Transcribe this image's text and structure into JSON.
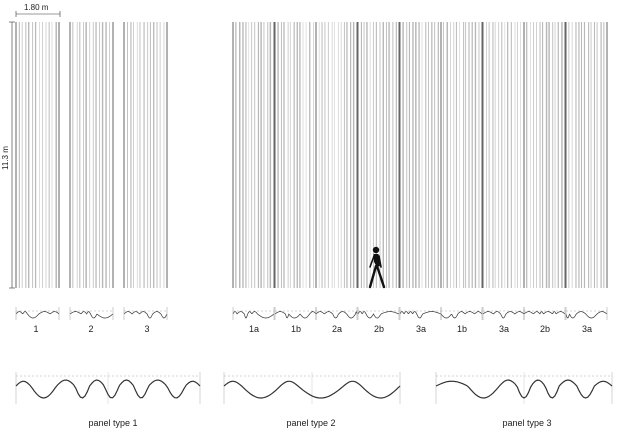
{
  "dimensions": {
    "width_label": "1.80 m",
    "height_label": "11.3 m"
  },
  "left_panels": [
    "1",
    "2",
    "3"
  ],
  "right_panels": [
    "1a",
    "1b",
    "2a",
    "2b",
    "3a",
    "1b",
    "3a",
    "2b",
    "3a"
  ],
  "panel_types": [
    "panel type 1",
    "panel type 2",
    "panel type 3"
  ],
  "colors": {
    "line": "#b8b8b8",
    "dark": "#666666",
    "ink": "#222222"
  }
}
